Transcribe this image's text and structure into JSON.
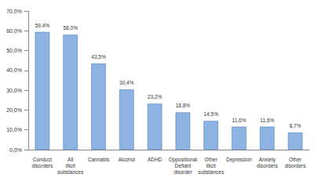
{
  "chart_data": {
    "type": "bar",
    "categories": [
      "Conduct disorders",
      "All illicit substances",
      "Cannabis",
      "Alcohol",
      "ADHD",
      "Oppositional Defiant disorder",
      "Other illicit substances",
      "Depression",
      "Anxiety disorders",
      "Other disorders"
    ],
    "values": [
      59.4,
      58.0,
      43.5,
      30.4,
      23.2,
      18.8,
      14.5,
      11.6,
      11.6,
      8.7
    ],
    "value_labels": [
      "59,4%",
      "58,0%",
      "43,5%",
      "30,4%",
      "23,2%",
      "18,8%",
      "14,5%",
      "11,6%",
      "11,6%",
      "8,7%"
    ],
    "color": "#8db3e2",
    "ylim": [
      0,
      70
    ],
    "yticks": [
      {
        "value": 0,
        "label": "0,0%"
      },
      {
        "value": 10,
        "label": "10,0%"
      },
      {
        "value": 20,
        "label": "20,0%"
      },
      {
        "value": 30,
        "label": "30,0%"
      },
      {
        "value": 40,
        "label": "40,0%"
      },
      {
        "value": 50,
        "label": "50,0%"
      },
      {
        "value": 60,
        "label": "60,0%"
      },
      {
        "value": 70,
        "label": "70,0%"
      }
    ],
    "grid": false,
    "data_labels": true
  }
}
